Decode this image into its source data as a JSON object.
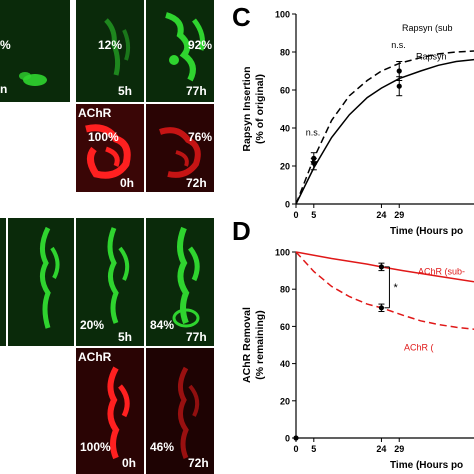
{
  "panel_labels": {
    "c": "C",
    "d": "D"
  },
  "images": {
    "row1": [
      {
        "lines": [
          "%",
          "n"
        ]
      },
      {
        "lines": [
          "12%",
          "5h"
        ]
      },
      {
        "lines": [
          "92%",
          "77h"
        ]
      },
      {
        "lines": [
          "AChR",
          "100%",
          "0h"
        ]
      },
      {
        "lines": [
          "76%",
          "72h"
        ]
      }
    ],
    "row2": [
      {
        "lines": [
          "20%",
          "5h"
        ]
      },
      {
        "lines": [
          "84%",
          "77h"
        ]
      },
      {
        "lines": [
          "AChR",
          "100%",
          "0h"
        ]
      },
      {
        "lines": [
          "46%",
          "72h"
        ]
      }
    ]
  },
  "colors": {
    "green_channel": "#2fd42f",
    "red_channel": "#ff2020",
    "ctrl_line": "#000000",
    "achr_line": "#e01818"
  },
  "chart_data": [
    {
      "type": "line",
      "panel": "C",
      "ylabel": "Rapsyn Insertion\n(% of original)",
      "xlabel": "Time (Hours po",
      "ylim": [
        0,
        100
      ],
      "yticks": [
        0,
        20,
        40,
        60,
        80,
        100
      ],
      "xticks": [
        0,
        5,
        24,
        29
      ],
      "series": [
        {
          "name": "Rapsyn (sub",
          "style": "dashed",
          "x": [
            0,
            5,
            10,
            15,
            20,
            24,
            29,
            35,
            40,
            45,
            50
          ],
          "y": [
            0,
            24,
            44,
            57,
            65,
            70,
            74,
            77,
            79,
            80,
            80.5
          ]
        },
        {
          "name": "Rapsyn",
          "style": "solid",
          "x": [
            0,
            5,
            10,
            15,
            20,
            24,
            29,
            35,
            40,
            45,
            50
          ],
          "y": [
            0,
            19,
            35,
            47,
            56,
            61,
            66,
            70,
            73,
            75,
            76
          ]
        }
      ],
      "points": [
        {
          "x": 5,
          "y": 24,
          "err": 3
        },
        {
          "x": 5,
          "y": 21,
          "err": 3
        },
        {
          "x": 29,
          "y": 70,
          "err": 5
        },
        {
          "x": 29,
          "y": 62,
          "err": 5
        }
      ],
      "annotations": [
        "n.s.",
        "n.s."
      ]
    },
    {
      "type": "line",
      "panel": "D",
      "ylabel": "AChR Removal\n(% remaining)",
      "xlabel": "Time (Hours po",
      "ylim": [
        0,
        100
      ],
      "yticks": [
        0,
        20,
        40,
        60,
        80,
        100
      ],
      "xticks": [
        0,
        5,
        24,
        29
      ],
      "series": [
        {
          "name": "AChR (sub-",
          "style": "solid",
          "x": [
            0,
            10,
            20,
            24,
            30,
            40,
            50
          ],
          "y": [
            100,
            96.5,
            93.5,
            92,
            90,
            87,
            84
          ]
        },
        {
          "name": "AChR (",
          "style": "dashed",
          "x": [
            0,
            5,
            10,
            15,
            20,
            24,
            30,
            35,
            40,
            45,
            50
          ],
          "y": [
            100,
            89.5,
            81.5,
            76,
            72,
            70,
            66,
            63,
            61,
            59.5,
            58.5
          ]
        }
      ],
      "points": [
        {
          "x": 24,
          "y": 92,
          "err": 2
        },
        {
          "x": 24,
          "y": 70,
          "err": 2
        },
        {
          "x": 0,
          "y": 0,
          "err": 0
        }
      ],
      "annotations": [
        "*"
      ]
    }
  ]
}
